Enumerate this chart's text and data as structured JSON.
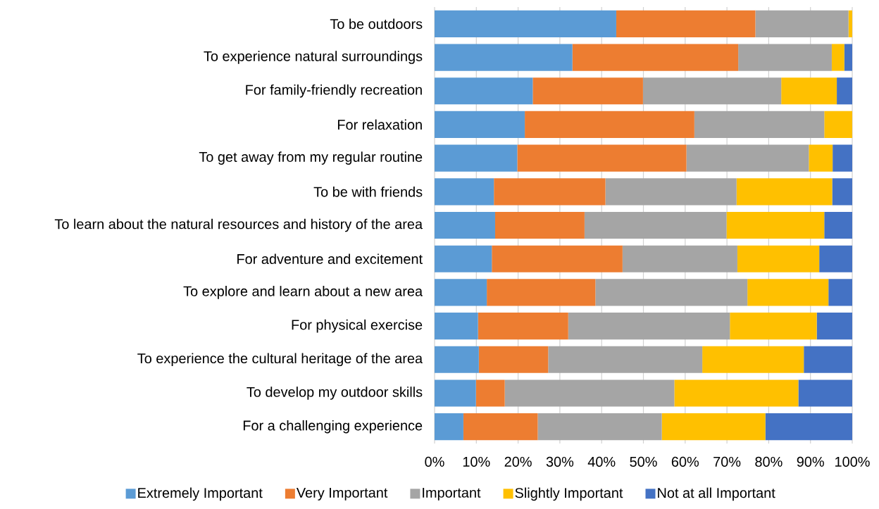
{
  "chart_data": {
    "type": "bar",
    "orientation": "horizontal",
    "stacked": true,
    "categories": [
      "To be outdoors",
      "To experience natural surroundings",
      "For family-friendly recreation",
      "For relaxation",
      "To get away from my regular routine",
      "To be with friends",
      "To learn about the natural resources and history of the area",
      "For adventure and excitement",
      "To explore and learn about a new area",
      "For physical exercise",
      "To experience the cultural heritage of the area",
      "To develop my outdoor skills",
      "For a challenging experience"
    ],
    "series": [
      {
        "name": "Extremely Important",
        "color": "#5b9bd5",
        "values": [
          43.5,
          33.0,
          23.5,
          21.6,
          19.8,
          14.2,
          14.5,
          13.7,
          12.5,
          10.4,
          10.6,
          9.9,
          6.9
        ]
      },
      {
        "name": "Very Important",
        "color": "#ed7d31",
        "values": [
          33.3,
          39.7,
          26.4,
          40.6,
          40.5,
          26.7,
          21.4,
          31.3,
          26.0,
          21.6,
          16.6,
          6.9,
          17.8
        ]
      },
      {
        "name": "Important",
        "color": "#a5a5a5",
        "values": [
          22.3,
          22.4,
          33.1,
          31.1,
          29.3,
          31.4,
          34.0,
          27.5,
          36.4,
          38.7,
          36.9,
          40.6,
          29.7
        ]
      },
      {
        "name": "Slightly Important",
        "color": "#ffc000",
        "values": [
          0.9,
          3.0,
          13.3,
          6.7,
          5.7,
          22.9,
          23.4,
          19.6,
          19.4,
          20.8,
          24.3,
          29.7,
          24.8
        ]
      },
      {
        "name": "Not at all Important",
        "color": "#4472c4",
        "values": [
          0,
          1.9,
          3.7,
          0,
          4.7,
          4.8,
          6.7,
          7.9,
          5.7,
          8.5,
          11.6,
          12.9,
          20.8
        ]
      }
    ],
    "xlim": [
      0,
      100
    ],
    "xticks": [
      {
        "value": 0,
        "label": "0%"
      },
      {
        "value": 10,
        "label": "10%"
      },
      {
        "value": 20,
        "label": "20%"
      },
      {
        "value": 30,
        "label": "30%"
      },
      {
        "value": 40,
        "label": "40%"
      },
      {
        "value": 50,
        "label": "50%"
      },
      {
        "value": 60,
        "label": "60%"
      },
      {
        "value": 70,
        "label": "70%"
      },
      {
        "value": 80,
        "label": "80%"
      },
      {
        "value": 90,
        "label": "90%"
      },
      {
        "value": 100,
        "label": "100%"
      }
    ],
    "grid": "x",
    "legend": "bottom"
  }
}
